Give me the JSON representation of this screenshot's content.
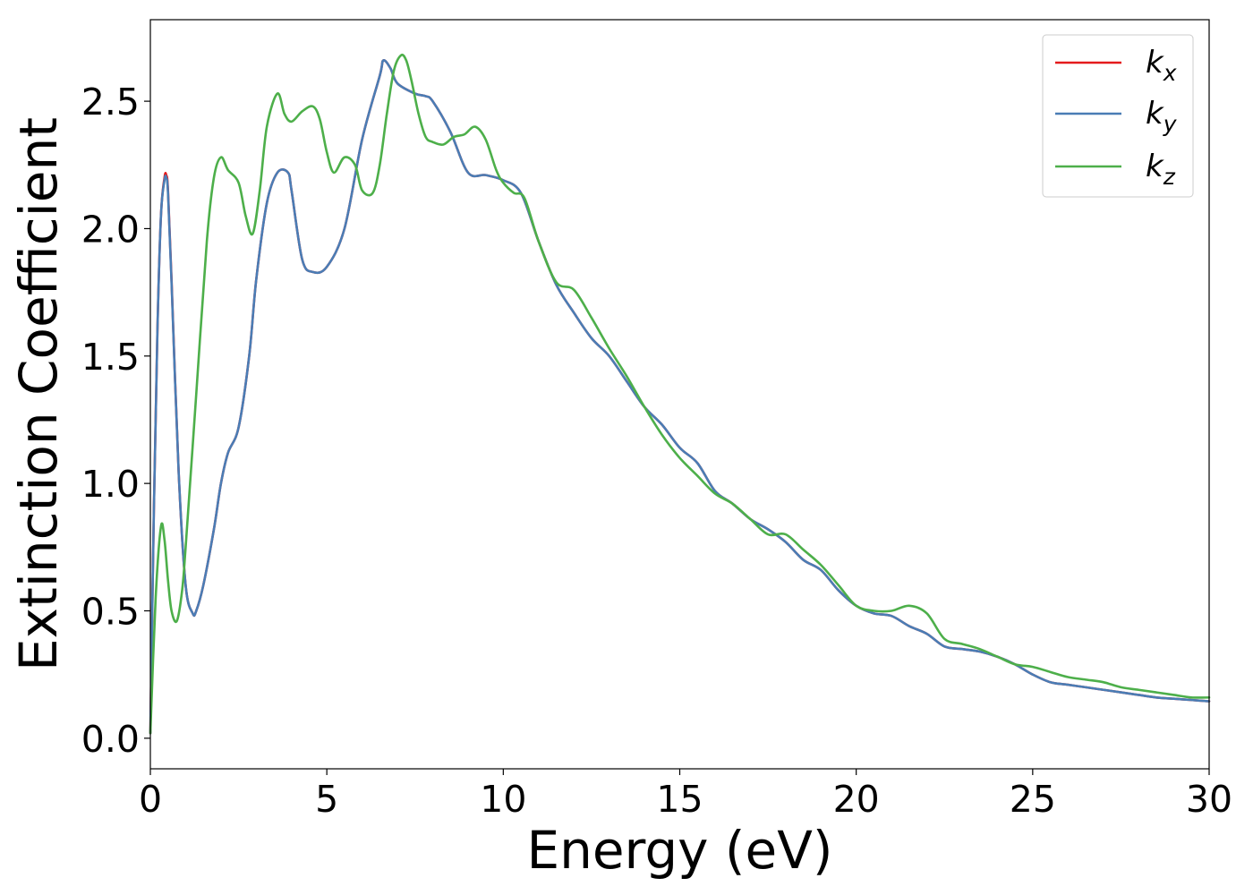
{
  "chart_data": {
    "type": "line",
    "xlabel": "Energy (eV)",
    "ylabel": "Extinction Coefficient",
    "xlim": [
      0,
      30
    ],
    "ylim": [
      -0.12,
      2.82
    ],
    "grid": false,
    "legend_position": "top-right",
    "x_ticks": [
      {
        "value": 0,
        "label": "0"
      },
      {
        "value": 5,
        "label": "5"
      },
      {
        "value": 10,
        "label": "10"
      },
      {
        "value": 15,
        "label": "15"
      },
      {
        "value": 20,
        "label": "20"
      },
      {
        "value": 25,
        "label": "25"
      },
      {
        "value": 30,
        "label": "30"
      }
    ],
    "y_ticks": [
      {
        "value": 0.0,
        "label": "0.0"
      },
      {
        "value": 0.5,
        "label": "0.5"
      },
      {
        "value": 1.0,
        "label": "1.0"
      },
      {
        "value": 1.5,
        "label": "1.5"
      },
      {
        "value": 2.0,
        "label": "2.0"
      },
      {
        "value": 2.5,
        "label": "2.5"
      }
    ],
    "series": [
      {
        "name": "k",
        "subscript": "x",
        "color": "#e41a1c",
        "x": [
          0,
          0.1,
          0.2,
          0.3,
          0.4,
          0.45,
          0.5,
          0.6,
          0.8,
          1.0,
          1.2,
          1.3,
          1.5,
          1.8,
          2.0,
          2.2,
          2.5,
          2.8,
          3.0,
          3.3,
          3.6,
          3.9,
          4.0,
          4.3,
          4.6,
          5.0,
          5.5,
          6.0,
          6.5,
          6.6,
          6.8,
          7.0,
          7.5,
          7.8,
          8.0,
          8.5,
          9.0,
          9.5,
          10.0,
          10.5,
          11.0,
          11.5,
          12.0,
          12.5,
          13.0,
          13.5,
          14.0,
          14.5,
          15.0,
          15.5,
          16.0,
          16.5,
          17.0,
          17.5,
          18.0,
          18.5,
          19.0,
          19.5,
          20.0,
          20.5,
          21.0,
          21.5,
          22.0,
          22.5,
          23.0,
          23.5,
          24.0,
          24.5,
          25.0,
          25.5,
          26.0,
          26.5,
          27.0,
          27.5,
          28.0,
          28.5,
          29.0,
          29.5,
          30.0
        ],
        "y": [
          0.02,
          0.9,
          1.6,
          2.05,
          2.2,
          2.21,
          2.15,
          1.8,
          1.05,
          0.6,
          0.49,
          0.5,
          0.6,
          0.82,
          1.0,
          1.12,
          1.22,
          1.5,
          1.8,
          2.1,
          2.22,
          2.22,
          2.15,
          1.88,
          1.83,
          1.85,
          2.0,
          2.35,
          2.6,
          2.66,
          2.63,
          2.57,
          2.53,
          2.52,
          2.5,
          2.38,
          2.22,
          2.21,
          2.19,
          2.14,
          1.95,
          1.78,
          1.67,
          1.57,
          1.5,
          1.4,
          1.3,
          1.23,
          1.14,
          1.08,
          0.97,
          0.92,
          0.86,
          0.82,
          0.77,
          0.7,
          0.66,
          0.58,
          0.52,
          0.49,
          0.48,
          0.44,
          0.41,
          0.36,
          0.35,
          0.34,
          0.32,
          0.29,
          0.25,
          0.22,
          0.21,
          0.2,
          0.19,
          0.18,
          0.17,
          0.16,
          0.155,
          0.15,
          0.145
        ]
      },
      {
        "name": "k",
        "subscript": "y",
        "color": "#4a7db5",
        "x": [
          0,
          0.1,
          0.2,
          0.3,
          0.4,
          0.45,
          0.5,
          0.6,
          0.8,
          1.0,
          1.2,
          1.3,
          1.5,
          1.8,
          2.0,
          2.2,
          2.5,
          2.8,
          3.0,
          3.3,
          3.6,
          3.9,
          4.0,
          4.3,
          4.6,
          5.0,
          5.5,
          6.0,
          6.5,
          6.6,
          6.8,
          7.0,
          7.5,
          7.8,
          8.0,
          8.5,
          9.0,
          9.5,
          10.0,
          10.5,
          11.0,
          11.5,
          12.0,
          12.5,
          13.0,
          13.5,
          14.0,
          14.5,
          15.0,
          15.5,
          16.0,
          16.5,
          17.0,
          17.5,
          18.0,
          18.5,
          19.0,
          19.5,
          20.0,
          20.5,
          21.0,
          21.5,
          22.0,
          22.5,
          23.0,
          23.5,
          24.0,
          24.5,
          25.0,
          25.5,
          26.0,
          26.5,
          27.0,
          27.5,
          28.0,
          28.5,
          29.0,
          29.5,
          30.0
        ],
        "y": [
          0.02,
          0.9,
          1.6,
          2.05,
          2.19,
          2.2,
          2.14,
          1.79,
          1.05,
          0.6,
          0.49,
          0.5,
          0.6,
          0.82,
          1.0,
          1.12,
          1.22,
          1.5,
          1.8,
          2.1,
          2.22,
          2.22,
          2.15,
          1.88,
          1.83,
          1.85,
          2.0,
          2.35,
          2.6,
          2.66,
          2.63,
          2.57,
          2.53,
          2.52,
          2.5,
          2.38,
          2.22,
          2.21,
          2.19,
          2.14,
          1.95,
          1.78,
          1.67,
          1.57,
          1.5,
          1.4,
          1.3,
          1.23,
          1.14,
          1.08,
          0.97,
          0.92,
          0.86,
          0.82,
          0.77,
          0.7,
          0.66,
          0.58,
          0.52,
          0.49,
          0.48,
          0.44,
          0.41,
          0.36,
          0.35,
          0.34,
          0.32,
          0.29,
          0.25,
          0.22,
          0.21,
          0.2,
          0.19,
          0.18,
          0.17,
          0.16,
          0.155,
          0.15,
          0.145
        ]
      },
      {
        "name": "k",
        "subscript": "z",
        "color": "#4daf4a",
        "x": [
          0,
          0.15,
          0.3,
          0.4,
          0.5,
          0.6,
          0.75,
          0.9,
          1.0,
          1.3,
          1.6,
          1.8,
          2.0,
          2.2,
          2.5,
          2.7,
          2.9,
          3.1,
          3.3,
          3.6,
          3.8,
          4.0,
          4.3,
          4.6,
          4.8,
          5.0,
          5.2,
          5.5,
          5.8,
          6.0,
          6.3,
          6.5,
          6.7,
          6.9,
          7.1,
          7.25,
          7.4,
          7.6,
          7.8,
          8.0,
          8.3,
          8.6,
          8.9,
          9.2,
          9.5,
          9.8,
          10.0,
          10.3,
          10.6,
          11.0,
          11.5,
          12.0,
          12.5,
          13.0,
          13.5,
          14.0,
          14.5,
          15.0,
          15.5,
          16.0,
          16.5,
          17.0,
          17.5,
          18.0,
          18.5,
          19.0,
          19.5,
          20.0,
          20.5,
          21.0,
          21.5,
          22.0,
          22.5,
          23.0,
          23.5,
          24.0,
          24.5,
          25.0,
          25.5,
          26.0,
          26.5,
          27.0,
          27.5,
          28.0,
          28.5,
          29.0,
          29.5,
          30.0
        ],
        "y": [
          0.02,
          0.55,
          0.83,
          0.78,
          0.62,
          0.5,
          0.46,
          0.58,
          0.75,
          1.35,
          1.95,
          2.2,
          2.28,
          2.23,
          2.18,
          2.05,
          1.98,
          2.15,
          2.4,
          2.53,
          2.45,
          2.42,
          2.46,
          2.48,
          2.43,
          2.3,
          2.22,
          2.28,
          2.25,
          2.15,
          2.14,
          2.25,
          2.45,
          2.62,
          2.68,
          2.66,
          2.58,
          2.45,
          2.36,
          2.34,
          2.33,
          2.36,
          2.37,
          2.4,
          2.35,
          2.23,
          2.18,
          2.14,
          2.12,
          1.95,
          1.79,
          1.76,
          1.65,
          1.53,
          1.42,
          1.3,
          1.19,
          1.1,
          1.03,
          0.96,
          0.92,
          0.86,
          0.8,
          0.8,
          0.74,
          0.68,
          0.6,
          0.52,
          0.5,
          0.5,
          0.52,
          0.49,
          0.39,
          0.37,
          0.35,
          0.32,
          0.29,
          0.28,
          0.26,
          0.24,
          0.23,
          0.22,
          0.2,
          0.19,
          0.18,
          0.17,
          0.16,
          0.16
        ]
      }
    ]
  }
}
